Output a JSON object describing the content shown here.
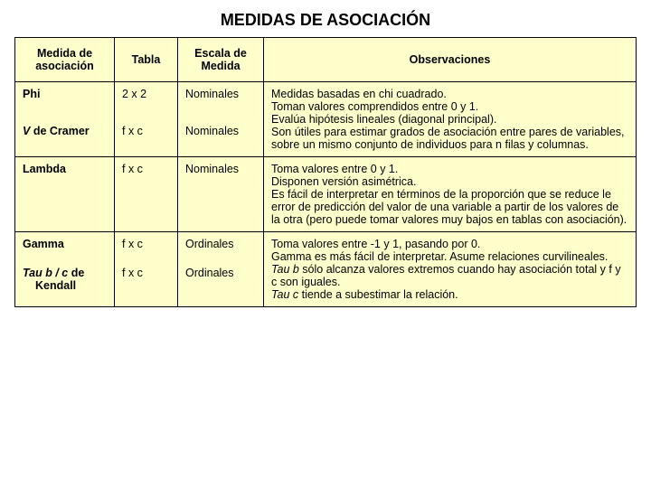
{
  "title": "MEDIDAS DE ASOCIACIÓN",
  "headers": {
    "medida": "Medida de asociación",
    "tabla": "Tabla",
    "escala": "Escala de Medida",
    "obs": "Observaciones"
  },
  "rows": {
    "phi": {
      "medida": "Phi",
      "tabla": "2 x 2",
      "escala": "Nominales"
    },
    "vcramer": {
      "prefix": "V",
      "rest": " de Cramer",
      "tabla": "f x c",
      "escala": "Nominales"
    },
    "lambda": {
      "medida": "Lambda",
      "tabla": "f x c",
      "escala": "Nominales"
    },
    "gamma": {
      "medida": "Gamma",
      "tabla": "f x c",
      "escala": "Ordinales"
    },
    "tau": {
      "prefix": "Tau b / c ",
      "rest": "de",
      "line2": "Kendall",
      "tabla": "f x c",
      "escala": "Ordinales"
    }
  },
  "obs": {
    "group1": {
      "l1": "Medidas basadas en chi cuadrado.",
      "l2": "Toman valores comprendidos entre 0 y 1.",
      "l3": "Evalúa hipótesis lineales (diagonal principal).",
      "l4": "Son útiles para estimar grados de asociación entre pares de variables, sobre un mismo conjunto de individuos para n filas y columnas."
    },
    "lambda": {
      "l1": "Toma valores entre 0 y 1.",
      "l2": "Disponen versión asimétrica.",
      "l3": "Es fácil de interpretar en términos de la proporción que se reduce le error de predicción del valor de una variable a partir de los valores de la otra (pero puede tomar valores muy bajos en tablas con asociación)."
    },
    "group3": {
      "l1": "Toma valores entre -1 y 1, pasando por 0.",
      "l2": "Gamma es más fácil de interpretar. Asume relaciones curvilineales.",
      "l3a": "Tau b",
      "l3b": " sólo alcanza valores extremos cuando hay asociación total y f y c son iguales.",
      "l4a": "Tau c ",
      "l4b": " tiende a subestimar la relación."
    }
  },
  "style": {
    "background": "#ffffcc",
    "border": "#000000",
    "title_fontsize": 18,
    "cell_fontsize": 12.5
  }
}
